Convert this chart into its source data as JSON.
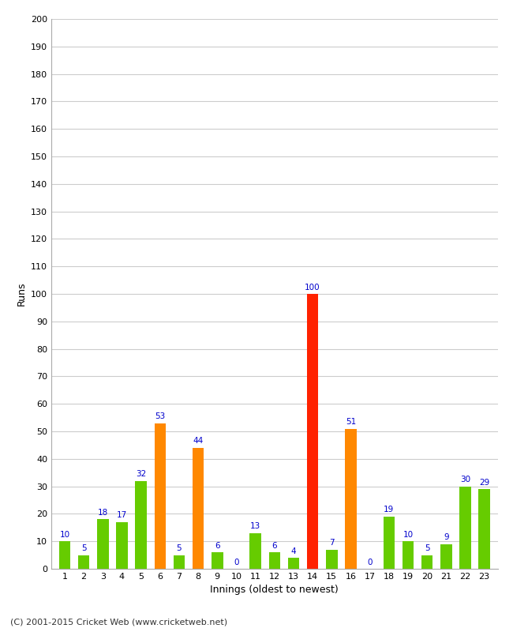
{
  "innings": [
    1,
    2,
    3,
    4,
    5,
    6,
    7,
    8,
    9,
    10,
    11,
    12,
    13,
    14,
    15,
    16,
    17,
    18,
    19,
    20,
    21,
    22,
    23
  ],
  "values": [
    10,
    5,
    18,
    17,
    32,
    53,
    5,
    44,
    6,
    0,
    13,
    6,
    4,
    100,
    7,
    51,
    0,
    19,
    10,
    5,
    9,
    30,
    29
  ],
  "colors": [
    "#66cc00",
    "#66cc00",
    "#66cc00",
    "#66cc00",
    "#66cc00",
    "#ff8800",
    "#66cc00",
    "#ff8800",
    "#66cc00",
    "#66cc00",
    "#66cc00",
    "#66cc00",
    "#66cc00",
    "#ff2200",
    "#66cc00",
    "#ff8800",
    "#66cc00",
    "#66cc00",
    "#66cc00",
    "#66cc00",
    "#66cc00",
    "#66cc00",
    "#66cc00"
  ],
  "xlabel": "Innings (oldest to newest)",
  "ylabel": "Runs",
  "ylim": [
    0,
    200
  ],
  "yticks": [
    0,
    10,
    20,
    30,
    40,
    50,
    60,
    70,
    80,
    90,
    100,
    110,
    120,
    130,
    140,
    150,
    160,
    170,
    180,
    190,
    200
  ],
  "label_color": "#0000cc",
  "background_color": "#ffffff",
  "grid_color": "#cccccc",
  "footer": "(C) 2001-2015 Cricket Web (www.cricketweb.net)",
  "bar_width": 0.6
}
